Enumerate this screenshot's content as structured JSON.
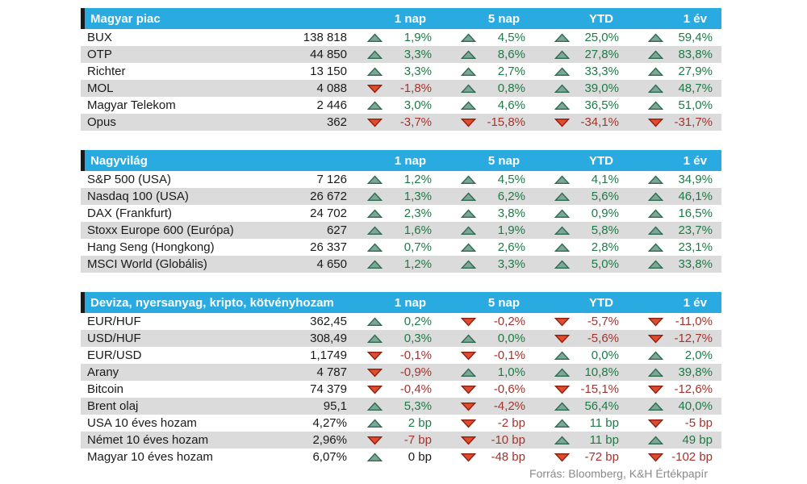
{
  "colors": {
    "header_bg": "#29abe2",
    "header_text": "#ffffff",
    "header_left_bar": "#1a1a1a",
    "alt_row_bg": "#dbdbdb",
    "body_text": "#1a1a1a",
    "positive_text": "#1e7a46",
    "negative_text": "#a4342e",
    "up_triangle_fill": "#7ca794",
    "up_triangle_stroke": "#2f6b52",
    "down_triangle_fill": "#e04d2e",
    "down_triangle_stroke": "#8e1f10",
    "footer_text": "#8a8a8a"
  },
  "footer": {
    "text": "Forrás: Bloomberg, K&H Értékpapír"
  },
  "chart_data": [
    {
      "type": "table",
      "title": "Magyar piac",
      "columns": [
        "1 nap",
        "5 nap",
        "YTD",
        "1 év"
      ],
      "rows": [
        {
          "name": "BUX",
          "value": "138 818",
          "changes": [
            {
              "dir": "up",
              "tone": "pos",
              "text": "1,9%"
            },
            {
              "dir": "up",
              "tone": "pos",
              "text": "4,5%"
            },
            {
              "dir": "up",
              "tone": "pos",
              "text": "25,0%"
            },
            {
              "dir": "up",
              "tone": "pos",
              "text": "59,4%"
            }
          ]
        },
        {
          "name": "OTP",
          "value": "44 850",
          "changes": [
            {
              "dir": "up",
              "tone": "pos",
              "text": "3,3%"
            },
            {
              "dir": "up",
              "tone": "pos",
              "text": "8,6%"
            },
            {
              "dir": "up",
              "tone": "pos",
              "text": "27,8%"
            },
            {
              "dir": "up",
              "tone": "pos",
              "text": "83,8%"
            }
          ]
        },
        {
          "name": "Richter",
          "value": "13 150",
          "changes": [
            {
              "dir": "up",
              "tone": "pos",
              "text": "3,3%"
            },
            {
              "dir": "up",
              "tone": "pos",
              "text": "2,7%"
            },
            {
              "dir": "up",
              "tone": "pos",
              "text": "33,3%"
            },
            {
              "dir": "up",
              "tone": "pos",
              "text": "27,9%"
            }
          ]
        },
        {
          "name": "MOL",
          "value": "4 088",
          "changes": [
            {
              "dir": "down",
              "tone": "neg",
              "text": "-1,8%"
            },
            {
              "dir": "up",
              "tone": "pos",
              "text": "0,8%"
            },
            {
              "dir": "up",
              "tone": "pos",
              "text": "39,0%"
            },
            {
              "dir": "up",
              "tone": "pos",
              "text": "48,7%"
            }
          ]
        },
        {
          "name": "Magyar Telekom",
          "value": "2 446",
          "changes": [
            {
              "dir": "up",
              "tone": "pos",
              "text": "3,0%"
            },
            {
              "dir": "up",
              "tone": "pos",
              "text": "4,6%"
            },
            {
              "dir": "up",
              "tone": "pos",
              "text": "36,5%"
            },
            {
              "dir": "up",
              "tone": "pos",
              "text": "51,0%"
            }
          ]
        },
        {
          "name": "Opus",
          "value": "362",
          "changes": [
            {
              "dir": "down",
              "tone": "neg",
              "text": "-3,7%"
            },
            {
              "dir": "down",
              "tone": "neg",
              "text": "-15,8%"
            },
            {
              "dir": "down",
              "tone": "neg",
              "text": "-34,1%"
            },
            {
              "dir": "down",
              "tone": "neg",
              "text": "-31,7%"
            }
          ]
        }
      ]
    },
    {
      "type": "table",
      "title": "Nagyvilág",
      "columns": [
        "1 nap",
        "5 nap",
        "YTD",
        "1 év"
      ],
      "rows": [
        {
          "name": "S&P 500 (USA)",
          "value": "7 126",
          "changes": [
            {
              "dir": "up",
              "tone": "pos",
              "text": "1,2%"
            },
            {
              "dir": "up",
              "tone": "pos",
              "text": "4,5%"
            },
            {
              "dir": "up",
              "tone": "pos",
              "text": "4,1%"
            },
            {
              "dir": "up",
              "tone": "pos",
              "text": "34,9%"
            }
          ]
        },
        {
          "name": "Nasdaq 100 (USA)",
          "value": "26 672",
          "changes": [
            {
              "dir": "up",
              "tone": "pos",
              "text": "1,3%"
            },
            {
              "dir": "up",
              "tone": "pos",
              "text": "6,2%"
            },
            {
              "dir": "up",
              "tone": "pos",
              "text": "5,6%"
            },
            {
              "dir": "up",
              "tone": "pos",
              "text": "46,1%"
            }
          ]
        },
        {
          "name": "DAX (Frankfurt)",
          "value": "24 702",
          "changes": [
            {
              "dir": "up",
              "tone": "pos",
              "text": "2,3%"
            },
            {
              "dir": "up",
              "tone": "pos",
              "text": "3,8%"
            },
            {
              "dir": "up",
              "tone": "pos",
              "text": "0,9%"
            },
            {
              "dir": "up",
              "tone": "pos",
              "text": "16,5%"
            }
          ]
        },
        {
          "name": "Stoxx Europe 600 (Európa)",
          "value": "627",
          "changes": [
            {
              "dir": "up",
              "tone": "pos",
              "text": "1,6%"
            },
            {
              "dir": "up",
              "tone": "pos",
              "text": "1,9%"
            },
            {
              "dir": "up",
              "tone": "pos",
              "text": "5,8%"
            },
            {
              "dir": "up",
              "tone": "pos",
              "text": "23,7%"
            }
          ]
        },
        {
          "name": "Hang Seng (Hongkong)",
          "value": "26 337",
          "changes": [
            {
              "dir": "up",
              "tone": "pos",
              "text": "0,7%"
            },
            {
              "dir": "up",
              "tone": "pos",
              "text": "2,6%"
            },
            {
              "dir": "up",
              "tone": "pos",
              "text": "2,8%"
            },
            {
              "dir": "up",
              "tone": "pos",
              "text": "23,1%"
            }
          ]
        },
        {
          "name": "MSCI World (Globális)",
          "value": "4 650",
          "changes": [
            {
              "dir": "up",
              "tone": "pos",
              "text": "1,2%"
            },
            {
              "dir": "up",
              "tone": "pos",
              "text": "3,3%"
            },
            {
              "dir": "up",
              "tone": "pos",
              "text": "5,0%"
            },
            {
              "dir": "up",
              "tone": "pos",
              "text": "33,8%"
            }
          ]
        }
      ]
    },
    {
      "type": "table",
      "title": "Deviza, nyersanyag, kripto, kötvényhozam",
      "columns": [
        "1 nap",
        "5 nap",
        "YTD",
        "1 év"
      ],
      "rows": [
        {
          "name": "EUR/HUF",
          "value": "362,45",
          "changes": [
            {
              "dir": "up",
              "tone": "pos",
              "text": "0,2%"
            },
            {
              "dir": "down",
              "tone": "neg",
              "text": "-0,2%"
            },
            {
              "dir": "down",
              "tone": "neg",
              "text": "-5,7%"
            },
            {
              "dir": "down",
              "tone": "neg",
              "text": "-11,0%"
            }
          ]
        },
        {
          "name": "USD/HUF",
          "value": "308,49",
          "changes": [
            {
              "dir": "up",
              "tone": "pos",
              "text": "0,3%"
            },
            {
              "dir": "up",
              "tone": "pos",
              "text": "0,0%"
            },
            {
              "dir": "down",
              "tone": "neg",
              "text": "-5,6%"
            },
            {
              "dir": "down",
              "tone": "neg",
              "text": "-12,7%"
            }
          ]
        },
        {
          "name": "EUR/USD",
          "value": "1,1749",
          "changes": [
            {
              "dir": "down",
              "tone": "neg",
              "text": "-0,1%"
            },
            {
              "dir": "down",
              "tone": "neg",
              "text": "-0,1%"
            },
            {
              "dir": "up",
              "tone": "pos",
              "text": "0,0%"
            },
            {
              "dir": "up",
              "tone": "pos",
              "text": "2,0%"
            }
          ]
        },
        {
          "name": "Arany",
          "value": "4 787",
          "changes": [
            {
              "dir": "down",
              "tone": "neg",
              "text": "-0,9%"
            },
            {
              "dir": "up",
              "tone": "pos",
              "text": "1,0%"
            },
            {
              "dir": "up",
              "tone": "pos",
              "text": "10,8%"
            },
            {
              "dir": "up",
              "tone": "pos",
              "text": "39,8%"
            }
          ]
        },
        {
          "name": "Bitcoin",
          "value": "74 379",
          "changes": [
            {
              "dir": "down",
              "tone": "neg",
              "text": "-0,4%"
            },
            {
              "dir": "down",
              "tone": "neg",
              "text": "-0,6%"
            },
            {
              "dir": "down",
              "tone": "neg",
              "text": "-15,1%"
            },
            {
              "dir": "down",
              "tone": "neg",
              "text": "-12,6%"
            }
          ]
        },
        {
          "name": "Brent olaj",
          "value": "95,1",
          "changes": [
            {
              "dir": "up",
              "tone": "pos",
              "text": "5,3%"
            },
            {
              "dir": "down",
              "tone": "neg",
              "text": "-4,2%"
            },
            {
              "dir": "up",
              "tone": "pos",
              "text": "56,4%"
            },
            {
              "dir": "up",
              "tone": "pos",
              "text": "40,0%"
            }
          ]
        },
        {
          "name": "USA 10 éves hozam",
          "value": "4,27%",
          "changes": [
            {
              "dir": "up",
              "tone": "pos",
              "text": "2 bp"
            },
            {
              "dir": "down",
              "tone": "neg",
              "text": "-2 bp"
            },
            {
              "dir": "up",
              "tone": "pos",
              "text": "11 bp"
            },
            {
              "dir": "down",
              "tone": "neg",
              "text": "-5 bp"
            }
          ]
        },
        {
          "name": "Német 10 éves hozam",
          "value": "2,96%",
          "changes": [
            {
              "dir": "down",
              "tone": "neg",
              "text": "-7 bp"
            },
            {
              "dir": "down",
              "tone": "neg",
              "text": "-10 bp"
            },
            {
              "dir": "up",
              "tone": "pos",
              "text": "11 bp"
            },
            {
              "dir": "up",
              "tone": "pos",
              "text": "49 bp"
            }
          ]
        },
        {
          "name": "Magyar 10 éves hozam",
          "value": "6,07%",
          "changes": [
            {
              "dir": "up",
              "tone": "neutral",
              "text": "0 bp"
            },
            {
              "dir": "down",
              "tone": "neg",
              "text": "-48 bp"
            },
            {
              "dir": "down",
              "tone": "neg",
              "text": "-72 bp"
            },
            {
              "dir": "down",
              "tone": "neg",
              "text": "-102 bp"
            }
          ]
        }
      ]
    }
  ]
}
